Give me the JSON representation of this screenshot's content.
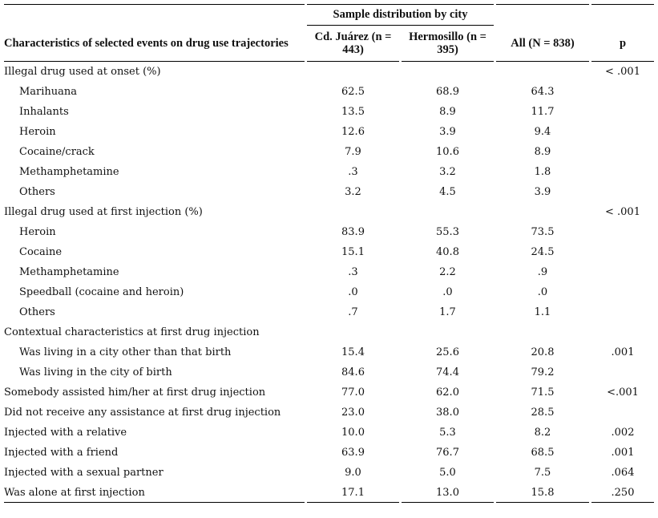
{
  "header": {
    "characteristics": "Characteristics of selected events on drug use  trajectories",
    "group": "Sample distribution by city",
    "col_juarez": "Cd. Juárez  (n = 443)",
    "col_hermosillo": "Hermosillo  (n = 395)",
    "col_all": "All  (N = 838)",
    "col_p": "p"
  },
  "rows": [
    {
      "label": "Illegal drug used at onset (%)",
      "indent": false,
      "juarez": "",
      "hermosillo": "",
      "all": "",
      "p": "< .001"
    },
    {
      "label": "Marihuana",
      "indent": true,
      "juarez": "62.5",
      "hermosillo": "68.9",
      "all": "64.3",
      "p": ""
    },
    {
      "label": "Inhalants",
      "indent": true,
      "juarez": "13.5",
      "hermosillo": "8.9",
      "all": "11.7",
      "p": ""
    },
    {
      "label": "Heroin",
      "indent": true,
      "juarez": "12.6",
      "hermosillo": "3.9",
      "all": "9.4",
      "p": ""
    },
    {
      "label": "Cocaine/crack",
      "indent": true,
      "juarez": "7.9",
      "hermosillo": "10.6",
      "all": "8.9",
      "p": ""
    },
    {
      "label": "Methamphetamine",
      "indent": true,
      "juarez": ".3",
      "hermosillo": "3.2",
      "all": "1.8",
      "p": ""
    },
    {
      "label": "Others",
      "indent": true,
      "juarez": "3.2",
      "hermosillo": "4.5",
      "all": "3.9",
      "p": ""
    },
    {
      "label": "Illegal drug used at first injection (%)",
      "indent": false,
      "juarez": "",
      "hermosillo": "",
      "all": "",
      "p": "< .001"
    },
    {
      "label": "Heroin",
      "indent": true,
      "juarez": "83.9",
      "hermosillo": "55.3",
      "all": "73.5",
      "p": ""
    },
    {
      "label": "Cocaine",
      "indent": true,
      "juarez": "15.1",
      "hermosillo": "40.8",
      "all": "24.5",
      "p": ""
    },
    {
      "label": "Methamphetamine",
      "indent": true,
      "juarez": ".3",
      "hermosillo": "2.2",
      "all": ".9",
      "p": ""
    },
    {
      "label": "Speedball (cocaine and heroin)",
      "indent": true,
      "juarez": ".0",
      "hermosillo": ".0",
      "all": ".0",
      "p": ""
    },
    {
      "label": "Others",
      "indent": true,
      "juarez": ".7",
      "hermosillo": "1.7",
      "all": "1.1",
      "p": ""
    },
    {
      "label": "Contextual characteristics at first drug injection",
      "indent": false,
      "juarez": "",
      "hermosillo": "",
      "all": "",
      "p": ""
    },
    {
      "label": "Was living in a city other than that birth",
      "indent": true,
      "juarez": "15.4",
      "hermosillo": "25.6",
      "all": "20.8",
      "p": ".001"
    },
    {
      "label": "Was living in the city of birth",
      "indent": true,
      "juarez": "84.6",
      "hermosillo": "74.4",
      "all": "79.2",
      "p": ""
    },
    {
      "label": "Somebody assisted him/her at first drug injection",
      "indent": false,
      "juarez": "77.0",
      "hermosillo": "62.0",
      "all": "71.5",
      "p": "<.001"
    },
    {
      "label": "Did not receive any assistance at first drug injection",
      "indent": false,
      "juarez": "23.0",
      "hermosillo": "38.0",
      "all": "28.5",
      "p": ""
    },
    {
      "label": "Injected with a relative",
      "indent": false,
      "juarez": "10.0",
      "hermosillo": "5.3",
      "all": "8.2",
      "p": ".002"
    },
    {
      "label": "Injected with a friend",
      "indent": false,
      "juarez": "63.9",
      "hermosillo": "76.7",
      "all": "68.5",
      "p": ".001"
    },
    {
      "label": "Injected with a sexual partner",
      "indent": false,
      "juarez": "9.0",
      "hermosillo": "5.0",
      "all": "7.5",
      "p": ".064"
    },
    {
      "label": "Was alone at first injection",
      "indent": false,
      "juarez": "17.1",
      "hermosillo": "13.0",
      "all": "15.8",
      "p": ".250"
    }
  ]
}
